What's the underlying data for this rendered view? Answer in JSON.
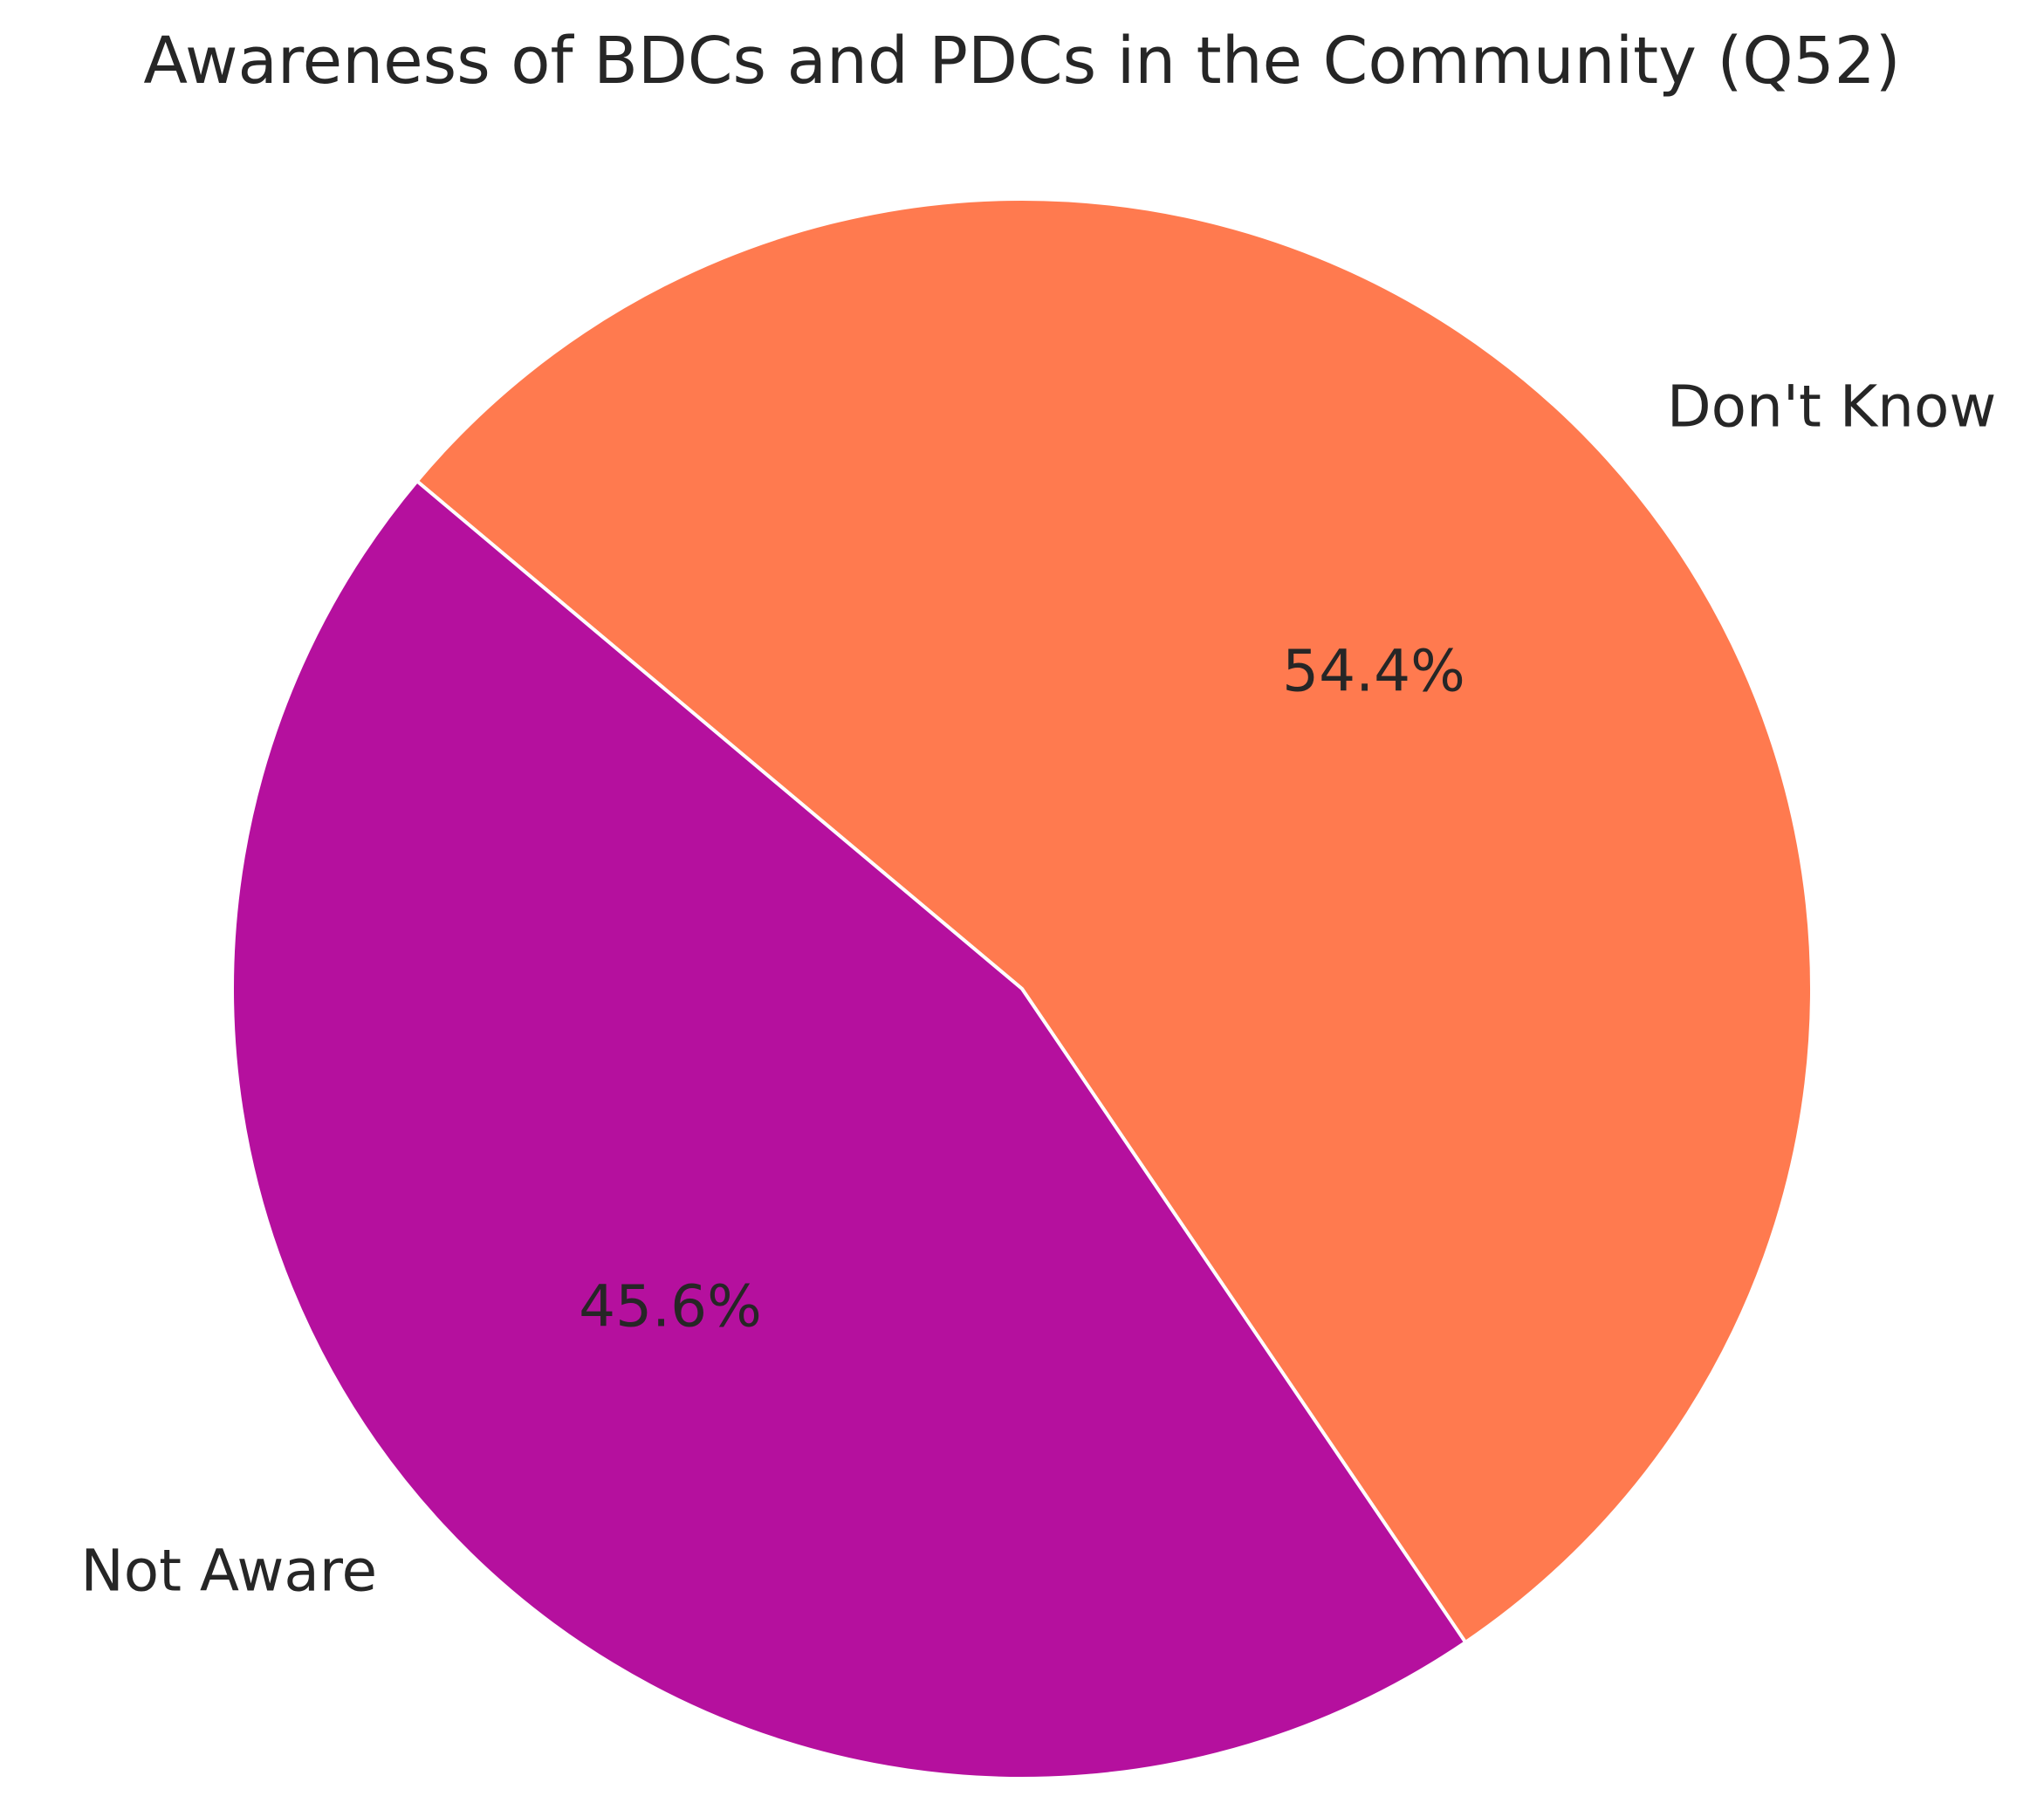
{
  "chart_data": {
    "type": "pie",
    "title": "Awareness of BDCs and PDCs in the Community (Q52)",
    "slices": [
      {
        "label": "Don't Know",
        "value": 54.4,
        "percent_label": "54.4%",
        "color": "#FF7A4F"
      },
      {
        "label": "Not Aware",
        "value": 45.6,
        "percent_label": "45.6%",
        "color": "#B5109E"
      }
    ],
    "start_angle_deg": 140,
    "direction": "clockwise",
    "edge_color": "#ffffff",
    "legend": "none"
  }
}
